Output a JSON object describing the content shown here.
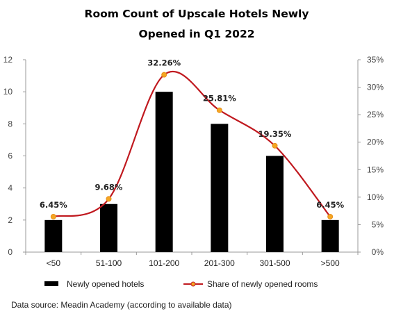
{
  "chart_data": {
    "type": "bar",
    "title_lines": [
      "Room Count of Upscale Hotels Newly",
      "Opened in Q1 2022"
    ],
    "categories": [
      "<50",
      "51-100",
      "101-200",
      "201-300",
      "301-500",
      ">500"
    ],
    "series": [
      {
        "name": "Newly opened hotels",
        "type": "bar",
        "axis": "left",
        "values": [
          2,
          3,
          10,
          8,
          6,
          2
        ],
        "color": "#000000"
      },
      {
        "name": "Share of newly opened rooms",
        "type": "line",
        "axis": "right",
        "values": [
          6.45,
          9.68,
          32.26,
          25.81,
          19.35,
          6.45
        ],
        "labels": [
          "6.45%",
          "9.68%",
          "32.26%",
          "25.81%",
          "19.35%",
          "6.45%"
        ],
        "color": "#c0191f",
        "marker_color": "#f5a623"
      }
    ],
    "y_left": {
      "min": 0,
      "max": 12,
      "ticks": [
        "0",
        "2",
        "4",
        "6",
        "8",
        "10",
        "12"
      ]
    },
    "y_right": {
      "min": 0,
      "max": 35,
      "ticks": [
        "0%",
        "5%",
        "10%",
        "15%",
        "20%",
        "25%",
        "30%",
        "35%"
      ]
    },
    "grid": false,
    "legend_position": "bottom",
    "source_note": "Data source: Meadin Academy (according to available data)"
  }
}
